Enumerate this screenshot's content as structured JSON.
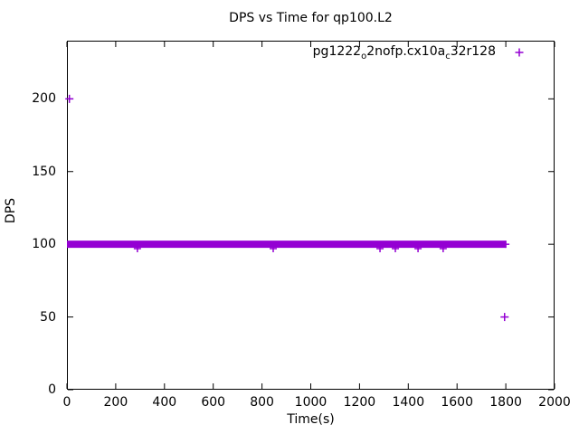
{
  "chart_data": {
    "type": "scatter",
    "title": "DPS vs Time for qp100.L2",
    "xlabel": "Time(s)",
    "ylabel": "DPS",
    "xlim": [
      0,
      2000
    ],
    "ylim": [
      0,
      240
    ],
    "xticks": [
      0,
      200,
      400,
      600,
      800,
      1000,
      1200,
      1400,
      1600,
      1800,
      2000
    ],
    "yticks": [
      0,
      50,
      100,
      150,
      200
    ],
    "grid": false,
    "legend_position": "top-right-inside",
    "series": [
      {
        "name": "pg1222_o2nofp.cx10a_c32r128",
        "label_parts": [
          {
            "text": "pg1222"
          },
          {
            "text": "o",
            "subscript": true
          },
          {
            "text": "2nofp.cx10a"
          },
          {
            "text": "c",
            "subscript": true
          },
          {
            "text": "32r128"
          }
        ],
        "marker": "plus",
        "color": "#9400d3",
        "steady_band": {
          "x_start": 0,
          "x_end": 1800,
          "y_mean": 100,
          "y_min": 97,
          "y_max": 102
        },
        "dip_points": [
          [
            289,
            97
          ],
          [
            846,
            97
          ],
          [
            1284,
            97
          ],
          [
            1347,
            97
          ],
          [
            1440,
            97
          ],
          [
            1543,
            97
          ]
        ],
        "outlier_points": [
          [
            10,
            200
          ],
          [
            1795,
            50
          ]
        ]
      }
    ]
  }
}
